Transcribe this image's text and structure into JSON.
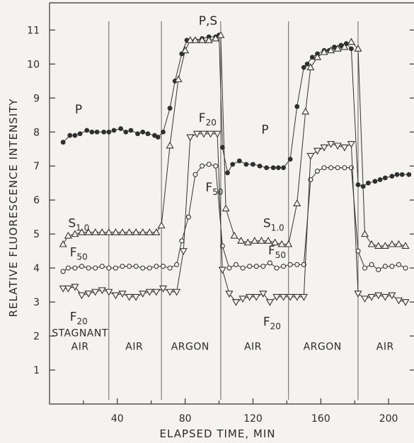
{
  "chart_data": {
    "type": "line",
    "xlabel": "ELAPSED TIME, MIN",
    "ylabel": "RELATIVE FLUORESCENCE INTENSITY",
    "xlim": [
      0,
      215
    ],
    "ylim": [
      0,
      11.8
    ],
    "x_ticks": [
      40,
      80,
      120,
      160,
      200
    ],
    "y_ticks": [
      1,
      2,
      3,
      4,
      5,
      6,
      7,
      8,
      9,
      10,
      11
    ],
    "grid": false,
    "phase_dividers": [
      35,
      66,
      101,
      141,
      182
    ],
    "phases": [
      {
        "label_lines": [
          "STAGNANT",
          "AIR"
        ],
        "x": 18
      },
      {
        "label_lines": [
          "AIR"
        ],
        "x": 50
      },
      {
        "label_lines": [
          "ARGON"
        ],
        "x": 83
      },
      {
        "label_lines": [
          "AIR"
        ],
        "x": 120
      },
      {
        "label_lines": [
          "ARGON"
        ],
        "x": 161
      },
      {
        "label_lines": [
          "AIR"
        ],
        "x": 198
      }
    ],
    "annotations": [
      {
        "text": "P,S",
        "sub": "",
        "x": 88,
        "y": 11.15
      },
      {
        "text": "P",
        "sub": "",
        "x": 15,
        "y": 8.55
      },
      {
        "text": "F",
        "sub": "20",
        "x": 88,
        "y": 8.3
      },
      {
        "text": "P",
        "sub": "",
        "x": 125,
        "y": 7.95
      },
      {
        "text": "S",
        "sub": "1.0",
        "x": 11,
        "y": 5.2
      },
      {
        "text": "F",
        "sub": "50",
        "x": 92,
        "y": 6.25
      },
      {
        "text": "S",
        "sub": "1.0",
        "x": 126,
        "y": 5.2
      },
      {
        "text": "F",
        "sub": "50",
        "x": 12,
        "y": 4.35
      },
      {
        "text": "F",
        "sub": "50",
        "x": 129,
        "y": 4.4
      },
      {
        "text": "F",
        "sub": "20",
        "x": 12,
        "y": 2.45
      },
      {
        "text": "F",
        "sub": "20",
        "x": 126,
        "y": 2.3
      }
    ],
    "series": [
      {
        "marker": "filled-circle",
        "x": [
          8,
          12,
          15,
          18,
          22,
          25,
          28,
          32,
          35,
          38,
          42,
          45,
          48,
          52,
          55,
          58,
          62,
          64,
          67,
          71,
          74,
          78,
          81,
          86,
          90,
          94,
          98,
          100,
          102,
          105,
          108,
          112,
          116,
          120,
          124,
          128,
          132,
          135,
          138,
          142,
          146,
          150,
          152,
          155,
          158,
          162,
          165,
          168,
          172,
          175,
          178,
          182,
          185,
          188,
          192,
          195,
          198,
          202,
          205,
          208,
          212
        ],
        "y": [
          7.7,
          7.9,
          7.9,
          7.95,
          8.05,
          8.0,
          8.0,
          8.0,
          8.0,
          8.05,
          8.1,
          8.0,
          8.05,
          7.95,
          8.0,
          7.95,
          7.9,
          7.85,
          8.0,
          8.7,
          9.5,
          10.3,
          10.7,
          10.7,
          10.75,
          10.8,
          10.8,
          10.85,
          7.55,
          6.8,
          7.05,
          7.15,
          7.05,
          7.05,
          7.0,
          6.95,
          6.95,
          6.95,
          6.95,
          7.2,
          8.75,
          9.9,
          10.0,
          10.2,
          10.3,
          10.4,
          10.4,
          10.5,
          10.55,
          10.6,
          10.45,
          6.45,
          6.4,
          6.5,
          6.55,
          6.6,
          6.65,
          6.7,
          6.75,
          6.75,
          6.75
        ]
      },
      {
        "marker": "open-triangle-up",
        "x": [
          8,
          11,
          15,
          19,
          23,
          27,
          31,
          35,
          39,
          43,
          47,
          51,
          55,
          59,
          63,
          66,
          71,
          76,
          80,
          83,
          86,
          90,
          94,
          98,
          101,
          104,
          109,
          113,
          117,
          121,
          125,
          129,
          133,
          137,
          141,
          146,
          151,
          154,
          158,
          162,
          166,
          170,
          174,
          178,
          182,
          186,
          190,
          194,
          198,
          202,
          206,
          210
        ],
        "y": [
          4.7,
          4.95,
          5.0,
          5.05,
          5.05,
          5.05,
          5.05,
          5.05,
          5.05,
          5.05,
          5.05,
          5.05,
          5.05,
          5.05,
          5.05,
          5.25,
          7.6,
          9.55,
          10.4,
          10.7,
          10.7,
          10.7,
          10.7,
          10.75,
          10.85,
          5.75,
          4.95,
          4.8,
          4.75,
          4.8,
          4.8,
          4.8,
          4.75,
          4.7,
          4.7,
          5.9,
          8.6,
          9.9,
          10.2,
          10.35,
          10.4,
          10.45,
          10.5,
          10.65,
          10.45,
          5.0,
          4.7,
          4.65,
          4.65,
          4.7,
          4.7,
          4.65
        ]
      },
      {
        "marker": "open-circle",
        "x": [
          8,
          11,
          15,
          19,
          23,
          27,
          31,
          35,
          39,
          43,
          47,
          51,
          55,
          59,
          63,
          67,
          71,
          75,
          78,
          82,
          86,
          90,
          94,
          98,
          102,
          106,
          110,
          114,
          118,
          122,
          126,
          130,
          134,
          138,
          142,
          146,
          150,
          154,
          158,
          162,
          166,
          170,
          174,
          178,
          182,
          186,
          190,
          194,
          198,
          202,
          206,
          210
        ],
        "y": [
          3.9,
          4.0,
          4.0,
          4.05,
          4.0,
          4.0,
          4.05,
          4.0,
          4.0,
          4.05,
          4.05,
          4.05,
          4.0,
          4.0,
          4.05,
          4.05,
          4.0,
          4.1,
          4.8,
          5.5,
          6.75,
          7.0,
          7.05,
          7.0,
          4.65,
          4.0,
          4.1,
          4.0,
          4.05,
          4.05,
          4.05,
          4.15,
          4.0,
          4.05,
          4.1,
          4.1,
          4.1,
          6.6,
          6.85,
          6.95,
          6.95,
          6.95,
          6.95,
          6.95,
          4.5,
          4.0,
          4.1,
          3.95,
          4.05,
          4.05,
          4.1,
          4.0
        ]
      },
      {
        "marker": "open-triangle-down",
        "x": [
          8,
          11,
          15,
          19,
          23,
          27,
          31,
          35,
          39,
          43,
          47,
          51,
          55,
          59,
          63,
          67,
          71,
          75,
          79,
          83,
          87,
          91,
          95,
          99,
          102,
          106,
          110,
          114,
          118,
          122,
          126,
          130,
          134,
          138,
          142,
          146,
          150,
          154,
          158,
          162,
          166,
          170,
          174,
          178,
          182,
          186,
          190,
          194,
          198,
          202,
          206,
          210
        ],
        "y": [
          3.4,
          3.4,
          3.45,
          3.2,
          3.25,
          3.3,
          3.35,
          3.3,
          3.2,
          3.25,
          3.15,
          3.15,
          3.25,
          3.3,
          3.3,
          3.4,
          3.3,
          3.3,
          4.5,
          7.85,
          7.95,
          7.95,
          7.95,
          7.95,
          3.95,
          3.25,
          3.0,
          3.1,
          3.15,
          3.15,
          3.25,
          3.0,
          3.15,
          3.15,
          3.15,
          3.15,
          3.15,
          7.3,
          7.45,
          7.55,
          7.65,
          7.6,
          7.55,
          7.65,
          3.25,
          3.1,
          3.15,
          3.2,
          3.15,
          3.2,
          3.05,
          3.0
        ]
      }
    ]
  }
}
